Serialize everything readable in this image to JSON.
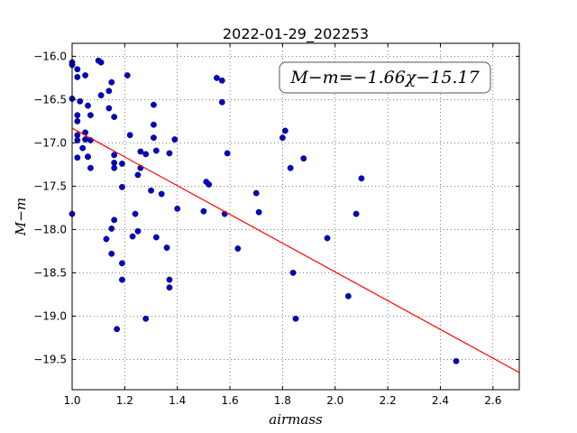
{
  "chart_data": {
    "type": "scatter",
    "title": "2022-01-29_202253",
    "xlabel": "airmass",
    "ylabel": "M−m",
    "xlim": [
      1.0,
      2.7
    ],
    "ylim": [
      -19.85,
      -15.85
    ],
    "xticks": [
      "1.0",
      "1.2",
      "1.4",
      "1.6",
      "1.8",
      "2.0",
      "2.2",
      "2.4",
      "2.6"
    ],
    "yticks": [
      "−16.0",
      "−16.5",
      "−17.0",
      "−17.5",
      "−18.0",
      "−18.5",
      "−19.0",
      "−19.5"
    ],
    "grid": true,
    "annotation": "M−m=−1.66χ−15.17",
    "fit": {
      "slope": -1.66,
      "intercept": -15.17,
      "x_range": [
        1.0,
        2.7
      ],
      "color": "#ff0000"
    },
    "point_color": "#0000cc",
    "points": [
      [
        1.0,
        -16.07
      ],
      [
        1.0,
        -16.1
      ],
      [
        1.0,
        -16.49
      ],
      [
        1.0,
        -17.82
      ],
      [
        1.02,
        -16.15
      ],
      [
        1.02,
        -16.24
      ],
      [
        1.02,
        -16.68
      ],
      [
        1.02,
        -16.75
      ],
      [
        1.02,
        -16.91
      ],
      [
        1.02,
        -16.97
      ],
      [
        1.02,
        -17.17
      ],
      [
        1.03,
        -16.52
      ],
      [
        1.04,
        -17.06
      ],
      [
        1.05,
        -16.22
      ],
      [
        1.05,
        -16.88
      ],
      [
        1.05,
        -16.96
      ],
      [
        1.06,
        -17.16
      ],
      [
        1.06,
        -17.16
      ],
      [
        1.06,
        -16.57
      ],
      [
        1.07,
        -16.68
      ],
      [
        1.07,
        -16.97
      ],
      [
        1.07,
        -17.29
      ],
      [
        1.1,
        -16.05
      ],
      [
        1.11,
        -16.07
      ],
      [
        1.11,
        -16.45
      ],
      [
        1.13,
        -18.11
      ],
      [
        1.14,
        -16.4
      ],
      [
        1.14,
        -16.6
      ],
      [
        1.15,
        -16.3
      ],
      [
        1.15,
        -17.99
      ],
      [
        1.15,
        -18.28
      ],
      [
        1.16,
        -16.7
      ],
      [
        1.16,
        -17.14
      ],
      [
        1.16,
        -17.23
      ],
      [
        1.16,
        -17.29
      ],
      [
        1.16,
        -17.89
      ],
      [
        1.17,
        -19.15
      ],
      [
        1.19,
        -17.24
      ],
      [
        1.19,
        -17.51
      ],
      [
        1.19,
        -18.39
      ],
      [
        1.19,
        -18.58
      ],
      [
        1.21,
        -16.22
      ],
      [
        1.22,
        -16.91
      ],
      [
        1.23,
        -18.08
      ],
      [
        1.24,
        -17.82
      ],
      [
        1.25,
        -17.37
      ],
      [
        1.25,
        -18.02
      ],
      [
        1.26,
        -17.29
      ],
      [
        1.26,
        -17.1
      ],
      [
        1.28,
        -17.13
      ],
      [
        1.28,
        -19.03
      ],
      [
        1.3,
        -17.55
      ],
      [
        1.31,
        -16.56
      ],
      [
        1.31,
        -16.79
      ],
      [
        1.31,
        -16.94
      ],
      [
        1.32,
        -17.09
      ],
      [
        1.32,
        -18.09
      ],
      [
        1.34,
        -17.59
      ],
      [
        1.36,
        -18.21
      ],
      [
        1.37,
        -18.58
      ],
      [
        1.37,
        -18.67
      ],
      [
        1.37,
        -17.12
      ],
      [
        1.39,
        -16.96
      ],
      [
        1.4,
        -17.76
      ],
      [
        1.5,
        -17.79
      ],
      [
        1.51,
        -17.45
      ],
      [
        1.52,
        -17.48
      ],
      [
        1.55,
        -16.25
      ],
      [
        1.57,
        -16.53
      ],
      [
        1.57,
        -16.28
      ],
      [
        1.58,
        -17.82
      ],
      [
        1.59,
        -17.12
      ],
      [
        1.63,
        -18.22
      ],
      [
        1.7,
        -17.58
      ],
      [
        1.71,
        -17.8
      ],
      [
        1.8,
        -16.94
      ],
      [
        1.81,
        -16.86
      ],
      [
        1.83,
        -17.29
      ],
      [
        1.84,
        -18.5
      ],
      [
        1.85,
        -19.03
      ],
      [
        1.88,
        -17.18
      ],
      [
        1.97,
        -18.1
      ],
      [
        2.05,
        -18.77
      ],
      [
        2.08,
        -17.82
      ],
      [
        2.1,
        -17.41
      ],
      [
        2.46,
        -19.52
      ]
    ]
  }
}
